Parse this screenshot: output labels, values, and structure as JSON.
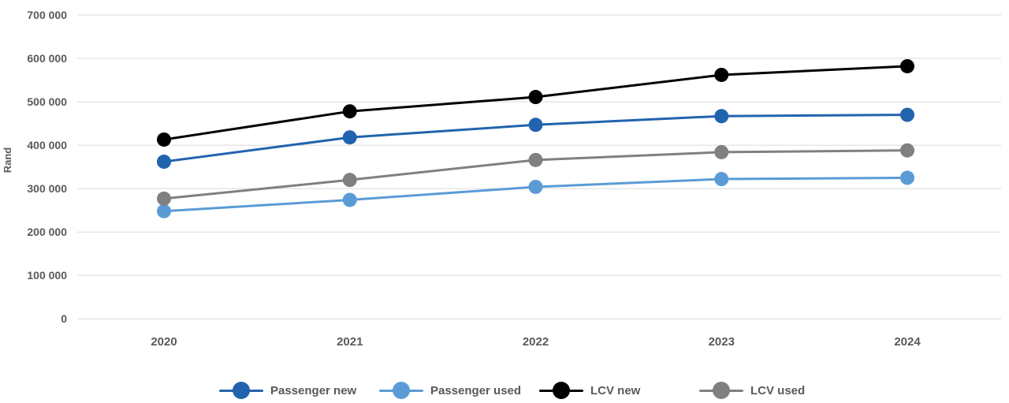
{
  "chart_data": {
    "type": "line",
    "title": "",
    "xlabel": "",
    "ylabel": "Rand",
    "x": [
      "2020",
      "2021",
      "2022",
      "2023",
      "2024"
    ],
    "ylim": [
      0,
      700000
    ],
    "ytick_interval": 100000,
    "ytick_labels": [
      "0",
      "100 000",
      "200 000",
      "300 000",
      "400 000",
      "500 000",
      "600 000",
      "700 000"
    ],
    "grid": "horizontal",
    "legend_position": "bottom",
    "text_color": "#595959",
    "gridline_color": "#DBDBDB",
    "series": [
      {
        "name": "Passenger new",
        "color": "#2263AE",
        "values": [
          362000,
          418000,
          447000,
          467000,
          470000
        ]
      },
      {
        "name": "Passenger used",
        "color": "#5B9BD5",
        "values": [
          248000,
          274000,
          304000,
          322000,
          325000
        ]
      },
      {
        "name": "LCV new",
        "color": "#000000",
        "values": [
          413000,
          478000,
          511000,
          562000,
          582000
        ]
      },
      {
        "name": "LCV used",
        "color": "#808080",
        "values": [
          277000,
          320000,
          366000,
          384000,
          388000
        ]
      }
    ]
  }
}
